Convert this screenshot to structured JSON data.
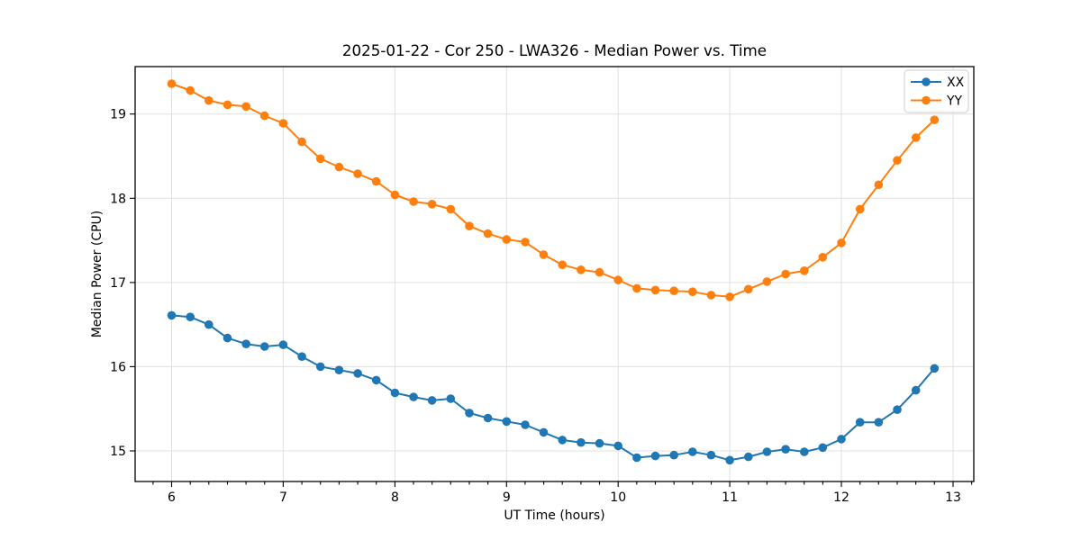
{
  "figure": {
    "title": "2025-01-22 - Cor 250 - LWA326 - Median Power vs. Time"
  },
  "chart_data": {
    "type": "line",
    "title": "2025-01-22 - Cor 250 - LWA326 - Median Power vs. Time",
    "xlabel": "UT Time (hours)",
    "ylabel": "Median Power (CPU)",
    "xlim": [
      5.673,
      13.186
    ],
    "ylim": [
      14.637,
      19.563
    ],
    "xticks": [
      6,
      7,
      8,
      9,
      10,
      11,
      12,
      13
    ],
    "yticks": [
      15,
      16,
      17,
      18,
      19
    ],
    "x_minor_interval": 0.16667,
    "grid": true,
    "legend_position": "upper right",
    "marker": "circle",
    "background": "#ffffff",
    "grid_color": "#e0e0e0",
    "x": [
      6,
      6.167,
      6.333,
      6.5,
      6.667,
      6.833,
      7,
      7.167,
      7.333,
      7.5,
      7.667,
      7.833,
      8,
      8.167,
      8.333,
      8.5,
      8.667,
      8.833,
      9,
      9.167,
      9.333,
      9.5,
      9.667,
      9.833,
      10,
      10.167,
      10.333,
      10.5,
      10.667,
      10.833,
      11,
      11.167,
      11.333,
      11.5,
      11.667,
      11.833,
      12,
      12.167,
      12.333,
      12.5,
      12.667,
      12.833
    ],
    "series": [
      {
        "name": "XX",
        "color": "#1f77b4",
        "values": [
          16.61,
          16.59,
          16.5,
          16.34,
          16.27,
          16.24,
          16.26,
          16.12,
          16.0,
          15.96,
          15.92,
          15.84,
          15.69,
          15.64,
          15.6,
          15.62,
          15.45,
          15.39,
          15.35,
          15.31,
          15.22,
          15.13,
          15.1,
          15.09,
          15.06,
          14.92,
          14.94,
          14.95,
          14.99,
          14.95,
          14.89,
          14.93,
          14.99,
          15.02,
          14.99,
          15.04,
          15.14,
          15.34,
          15.34,
          15.49,
          15.72,
          15.98
        ]
      },
      {
        "name": "YY",
        "color": "#ff7f0e",
        "values": [
          19.36,
          19.28,
          19.16,
          19.11,
          19.09,
          18.98,
          18.89,
          18.67,
          18.47,
          18.37,
          18.29,
          18.2,
          18.04,
          17.96,
          17.93,
          17.87,
          17.67,
          17.58,
          17.51,
          17.48,
          17.33,
          17.21,
          17.15,
          17.12,
          17.03,
          16.93,
          16.91,
          16.9,
          16.89,
          16.85,
          16.83,
          16.92,
          17.01,
          17.1,
          17.14,
          17.3,
          17.47,
          17.87,
          18.16,
          18.45,
          18.72,
          18.93
        ]
      }
    ]
  }
}
